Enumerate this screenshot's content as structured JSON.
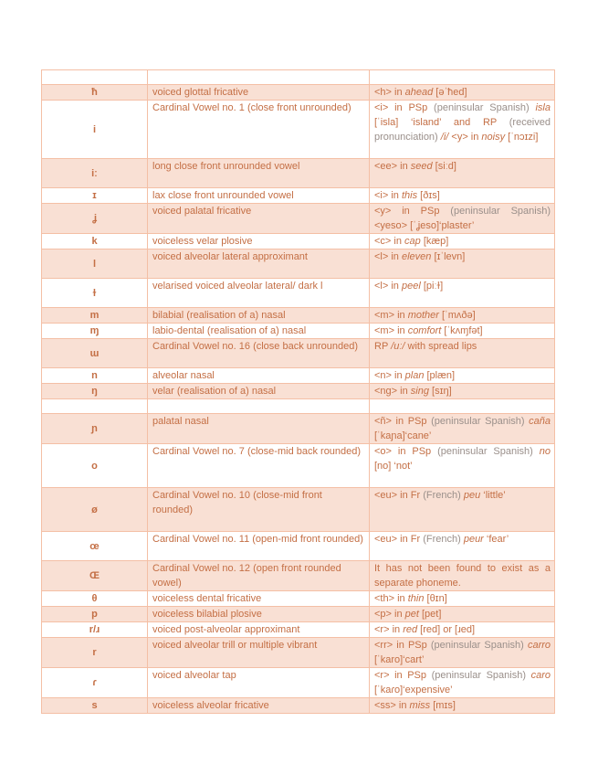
{
  "table": {
    "header": [
      "",
      "",
      ""
    ],
    "rows": [
      {
        "symbol": "ħ",
        "description": "voiced glottal fricative",
        "example": [
          {
            "t": "<h> in "
          },
          {
            "t": "ahead",
            "i": 1
          },
          {
            "t": " [əˈħed]"
          }
        ],
        "shaded": true
      },
      {
        "symbol": "i",
        "description": "Cardinal Vowel no. 1 (close front unrounded)",
        "example": [
          {
            "t": "<i> in PSp "
          },
          {
            "t": "(peninsular Spanish)",
            "g": 1
          },
          {
            "t": " "
          },
          {
            "t": "isla",
            "i": 1
          },
          {
            "t": " [ˈisla] ‘island’ and RP "
          },
          {
            "t": "(received pronunciation)",
            "g": 1
          },
          {
            "t": " "
          },
          {
            "t": "/i/",
            "i": 1
          },
          {
            "t": " <y> in "
          },
          {
            "t": "noisy",
            "i": 1
          },
          {
            "t": " [ˈnɔɪzi]"
          }
        ],
        "shaded": false
      },
      {
        "symbol": "iː",
        "description": "long close front unrounded vowel",
        "example": [
          {
            "t": "<ee> in "
          },
          {
            "t": "seed",
            "i": 1
          },
          {
            "t": " [siːd]"
          }
        ],
        "shaded": true
      },
      {
        "symbol": "ɪ",
        "description": "lax close front unrounded vowel",
        "example": [
          {
            "t": "<i> in "
          },
          {
            "t": "this",
            "i": 1
          },
          {
            "t": " [ðɪs]"
          }
        ],
        "shaded": false
      },
      {
        "symbol": "ʝ",
        "description": "voiced palatal fricative",
        "example": [
          {
            "t": "<y> in PSp "
          },
          {
            "t": "(peninsular Spanish)",
            "g": 1
          },
          {
            "t": " <yeso> [ˈʝeso]‘plaster’"
          }
        ],
        "shaded": true
      },
      {
        "symbol": "k",
        "description": "voiceless velar plosive",
        "example": [
          {
            "t": "<c> in "
          },
          {
            "t": "cap",
            "i": 1
          },
          {
            "t": " [kæp]"
          }
        ],
        "shaded": false
      },
      {
        "symbol": "l",
        "description": "voiced alveolar lateral approximant",
        "example": [
          {
            "t": "<l> in "
          },
          {
            "t": "eleven",
            "i": 1
          },
          {
            "t": " [ɪˈlevn]"
          }
        ],
        "shaded": true
      },
      {
        "symbol": "ɫ",
        "description": "velarised voiced alveolar lateral/ dark l",
        "example": [
          {
            "t": "<l> in "
          },
          {
            "t": "peel",
            "i": 1
          },
          {
            "t": " [piːɫ]"
          }
        ],
        "shaded": false
      },
      {
        "symbol": "m",
        "description": "bilabial (realisation of a) nasal",
        "example": [
          {
            "t": "<m> in "
          },
          {
            "t": "mother",
            "i": 1
          },
          {
            "t": " [ˈmʌðə]"
          }
        ],
        "shaded": true
      },
      {
        "symbol": "ɱ",
        "description": "labio-dental (realisation of a) nasal",
        "example": [
          {
            "t": "<m> in "
          },
          {
            "t": "comfort",
            "i": 1
          },
          {
            "t": " [ˈkʌɱfət]"
          }
        ],
        "shaded": false
      },
      {
        "symbol": "ɯ",
        "description": "Cardinal Vowel no. 16 (close back unrounded)",
        "example": [
          {
            "t": "RP "
          },
          {
            "t": "/uː/",
            "i": 1
          },
          {
            "t": " with spread lips"
          }
        ],
        "shaded": true
      },
      {
        "symbol": "n",
        "description": "alveolar nasal",
        "example": [
          {
            "t": "<n> in "
          },
          {
            "t": "plan",
            "i": 1
          },
          {
            "t": " [plæn]"
          }
        ],
        "shaded": false
      },
      {
        "symbol": "ŋ",
        "description": "velar (realisation of a) nasal",
        "example": [
          {
            "t": "<ng> in "
          },
          {
            "t": "sing",
            "i": 1
          },
          {
            "t": " [sɪŋ]"
          }
        ],
        "shaded": true
      },
      {
        "symbol": "",
        "description": "",
        "example": [],
        "shaded": false
      },
      {
        "symbol": "ɲ",
        "description": "palatal nasal",
        "example": [
          {
            "t": "<ñ> in PSp "
          },
          {
            "t": "(peninsular Spanish)",
            "g": 1
          },
          {
            "t": " "
          },
          {
            "t": "caña",
            "i": 1
          },
          {
            "t": " [ˈkaɲa]‘cane’"
          }
        ],
        "shaded": true
      },
      {
        "symbol": "o",
        "description": "Cardinal Vowel no. 7 (close-mid back rounded)",
        "example": [
          {
            "t": "<o> in PSp "
          },
          {
            "t": "(peninsular Spanish)",
            "g": 1
          },
          {
            "t": " "
          },
          {
            "t": "no",
            "i": 1
          },
          {
            "t": " [no] ‘not’"
          }
        ],
        "shaded": false
      },
      {
        "symbol": "ø",
        "description": "Cardinal Vowel no. 10 (close-mid front rounded)",
        "example": [
          {
            "t": "<eu> in Fr "
          },
          {
            "t": "(French)",
            "g": 1
          },
          {
            "t": " "
          },
          {
            "t": "peu",
            "i": 1
          },
          {
            "t": " ‘little’"
          }
        ],
        "shaded": true
      },
      {
        "symbol": "œ",
        "description": "Cardinal Vowel no. 11 (open-mid front rounded)",
        "example": [
          {
            "t": "<eu> in Fr "
          },
          {
            "t": "(French)",
            "g": 1
          },
          {
            "t": " "
          },
          {
            "t": "peur",
            "i": 1
          },
          {
            "t": " ‘fear’"
          }
        ],
        "shaded": false
      },
      {
        "symbol": "Œ",
        "description": "Cardinal Vowel no. 12 (open front rounded vowel)",
        "example": [
          {
            "t": "It has not been found to exist as a separate phoneme."
          }
        ],
        "shaded": true
      },
      {
        "symbol": "θ",
        "description": "voiceless dental fricative",
        "example": [
          {
            "t": "<th> in "
          },
          {
            "t": "thin",
            "i": 1
          },
          {
            "t": " [θɪn]"
          }
        ],
        "shaded": false
      },
      {
        "symbol": "p",
        "description": "voiceless bilabial plosive",
        "example": [
          {
            "t": "<p> in "
          },
          {
            "t": "pet",
            "i": 1
          },
          {
            "t": " [pet]"
          }
        ],
        "shaded": true
      },
      {
        "symbol": "r/ɹ",
        "description": "voiced post-alveolar approximant",
        "example": [
          {
            "t": "<r> in "
          },
          {
            "t": "red",
            "i": 1
          },
          {
            "t": " [red] or [ɹed]"
          }
        ],
        "shaded": false
      },
      {
        "symbol": "r",
        "description": "voiced alveolar trill or multiple vibrant",
        "example": [
          {
            "t": "<rr> in PSp "
          },
          {
            "t": "(peninsular Spanish)",
            "g": 1
          },
          {
            "t": " "
          },
          {
            "t": "carro",
            "i": 1
          },
          {
            "t": " [ˈkaro]‘cart’"
          }
        ],
        "shaded": true
      },
      {
        "symbol": "ɾ",
        "description": "voiced alveolar tap",
        "example": [
          {
            "t": "<r> in PSp "
          },
          {
            "t": "(peninsular Spanish)",
            "g": 1
          },
          {
            "t": " "
          },
          {
            "t": "caro",
            "i": 1
          },
          {
            "t": " [ˈkaɾo]‘expensive’"
          }
        ],
        "shaded": false
      },
      {
        "symbol": "s",
        "description": "voiceless alveolar fricative",
        "example": [
          {
            "t": "<ss> in "
          },
          {
            "t": "miss",
            "i": 1
          },
          {
            "t": " [mɪs]"
          }
        ],
        "shaded": true
      }
    ]
  }
}
